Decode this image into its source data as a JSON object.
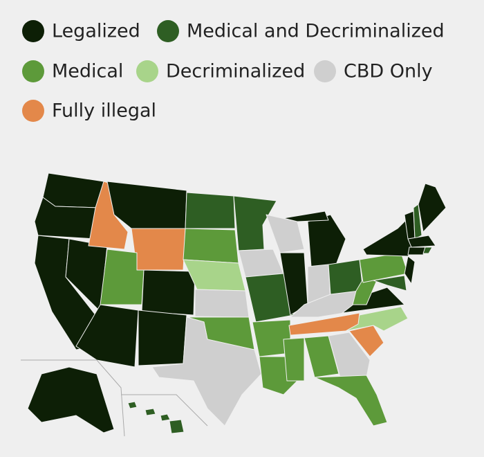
{
  "legend": [
    {
      "label": "Legalized",
      "color": "#0d1f06"
    },
    {
      "label": "Medical and Decriminalized",
      "color": "#2e5e23"
    },
    {
      "label": "Medical",
      "color": "#5d9a3a"
    },
    {
      "label": "Decriminalized",
      "color": "#a8d48a"
    },
    {
      "label": "CBD Only",
      "color": "#cfcfcf"
    },
    {
      "label": "Fully illegal",
      "color": "#e3884a"
    }
  ]
}
